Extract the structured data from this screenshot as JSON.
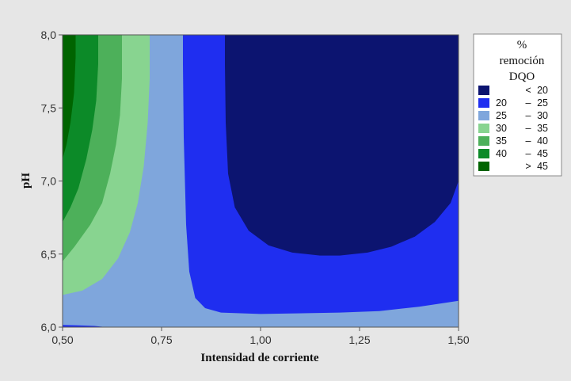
{
  "chart_data": {
    "type": "contour",
    "xlabel": "Intensidad de corriente",
    "ylabel": "pH",
    "xlim": [
      0.5,
      1.5
    ],
    "ylim": [
      6.0,
      8.0
    ],
    "x_ticks": [
      "0,50",
      "0,75",
      "1,00",
      "1,25",
      "1,50"
    ],
    "y_ticks": [
      "6,0",
      "6,5",
      "7,0",
      "7,5",
      "8,0"
    ],
    "legend": {
      "title": [
        "%",
        "remoción",
        "DQO"
      ],
      "placement": "right",
      "levels": [
        {
          "low": "",
          "sep": "<",
          "high": "20",
          "color": "#0c1470"
        },
        {
          "low": "20",
          "sep": "–",
          "high": "25",
          "color": "#1f2ef0"
        },
        {
          "low": "25",
          "sep": "–",
          "high": "30",
          "color": "#7fa6dc"
        },
        {
          "low": "30",
          "sep": "–",
          "high": "35",
          "color": "#88d490"
        },
        {
          "low": "35",
          "sep": "–",
          "high": "40",
          "color": "#4db05a"
        },
        {
          "low": "40",
          "sep": "–",
          "high": "45",
          "color": "#0c8a28"
        },
        {
          "low": "",
          "sep": ">",
          "high": "45",
          "color": "#006400"
        }
      ]
    },
    "regions": [
      {
        "level": "25-30",
        "polygon": [
          [
            0.5,
            6.0
          ],
          [
            1.5,
            6.0
          ],
          [
            1.5,
            8.0
          ],
          [
            0.5,
            8.0
          ]
        ]
      },
      {
        "level": "30-35",
        "polygon": [
          [
            0.5,
            8.0
          ],
          [
            0.72,
            8.0
          ],
          [
            0.72,
            7.7
          ],
          [
            0.715,
            7.4
          ],
          [
            0.705,
            7.1
          ],
          [
            0.69,
            6.85
          ],
          [
            0.67,
            6.65
          ],
          [
            0.64,
            6.47
          ],
          [
            0.6,
            6.33
          ],
          [
            0.55,
            6.25
          ],
          [
            0.5,
            6.22
          ]
        ]
      },
      {
        "level": "35-40",
        "polygon": [
          [
            0.5,
            8.0
          ],
          [
            0.65,
            8.0
          ],
          [
            0.65,
            7.7
          ],
          [
            0.645,
            7.45
          ],
          [
            0.635,
            7.25
          ],
          [
            0.62,
            7.05
          ],
          [
            0.6,
            6.85
          ],
          [
            0.57,
            6.7
          ],
          [
            0.53,
            6.55
          ],
          [
            0.5,
            6.45
          ]
        ]
      },
      {
        "level": "40-45",
        "polygon": [
          [
            0.5,
            8.0
          ],
          [
            0.59,
            8.0
          ],
          [
            0.59,
            7.8
          ],
          [
            0.585,
            7.55
          ],
          [
            0.575,
            7.35
          ],
          [
            0.56,
            7.15
          ],
          [
            0.54,
            6.95
          ],
          [
            0.52,
            6.82
          ],
          [
            0.5,
            6.72
          ]
        ]
      },
      {
        "level": ">45",
        "polygon": [
          [
            0.5,
            8.0
          ],
          [
            0.533,
            8.0
          ],
          [
            0.533,
            7.85
          ],
          [
            0.529,
            7.6
          ],
          [
            0.52,
            7.4
          ],
          [
            0.51,
            7.25
          ],
          [
            0.5,
            7.15
          ]
        ]
      },
      {
        "level": "25-30",
        "polygon": [
          [
            0.5,
            6.02
          ],
          [
            0.58,
            6.015
          ],
          [
            0.62,
            6.0
          ],
          [
            0.5,
            6.0
          ]
        ]
      },
      {
        "level": "20-25",
        "polygon": [
          [
            0.5,
            6.015
          ],
          [
            0.54,
            6.012
          ],
          [
            0.58,
            6.008
          ],
          [
            0.61,
            6.0
          ],
          [
            0.5,
            6.0
          ]
        ]
      },
      {
        "level": "20-25",
        "polygon": [
          [
            0.804,
            8.0
          ],
          [
            1.5,
            8.0
          ],
          [
            1.5,
            6.18
          ],
          [
            1.4,
            6.14
          ],
          [
            1.3,
            6.11
          ],
          [
            1.2,
            6.1
          ],
          [
            1.0,
            6.09
          ],
          [
            0.9,
            6.1
          ],
          [
            0.86,
            6.13
          ],
          [
            0.835,
            6.2
          ],
          [
            0.82,
            6.38
          ],
          [
            0.812,
            6.7
          ],
          [
            0.806,
            7.3
          ],
          [
            0.804,
            7.8
          ]
        ]
      },
      {
        "level": "<20",
        "polygon": [
          [
            0.91,
            8.0
          ],
          [
            1.5,
            8.0
          ],
          [
            1.5,
            7.0
          ],
          [
            1.48,
            6.85
          ],
          [
            1.44,
            6.72
          ],
          [
            1.39,
            6.62
          ],
          [
            1.33,
            6.55
          ],
          [
            1.27,
            6.51
          ],
          [
            1.2,
            6.49
          ],
          [
            1.15,
            6.49
          ],
          [
            1.08,
            6.51
          ],
          [
            1.02,
            6.56
          ],
          [
            0.97,
            6.66
          ],
          [
            0.935,
            6.82
          ],
          [
            0.918,
            7.05
          ],
          [
            0.912,
            7.4
          ],
          [
            0.91,
            7.8
          ]
        ]
      }
    ]
  }
}
